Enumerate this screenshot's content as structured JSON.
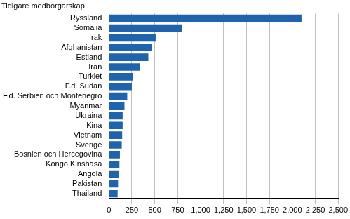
{
  "chart_data": {
    "type": "bar",
    "orientation": "horizontal",
    "title": "Tidigare medborgarskap",
    "categories": [
      "Ryssland",
      "Somalia",
      "Irak",
      "Afghanistan",
      "Estland",
      "Iran",
      "Turkiet",
      "F.d. Sudan",
      "F.d. Serbien och Montenegro",
      "Myanmar",
      "Ukraina",
      "Kina",
      "Vietnam",
      "Sverige",
      "Bosnien och Hercegovina",
      "Kongo Kinshasa",
      "Angola",
      "Pakistan",
      "Thailand"
    ],
    "values": [
      2100,
      800,
      510,
      470,
      430,
      340,
      260,
      250,
      200,
      170,
      150,
      150,
      145,
      140,
      120,
      115,
      105,
      100,
      95
    ],
    "color": "#1f63ad",
    "xlim": [
      0,
      2500
    ],
    "xticks": [
      0,
      250,
      500,
      750,
      1000,
      1250,
      1500,
      1750,
      2000,
      2250,
      2500
    ],
    "grid": true
  }
}
